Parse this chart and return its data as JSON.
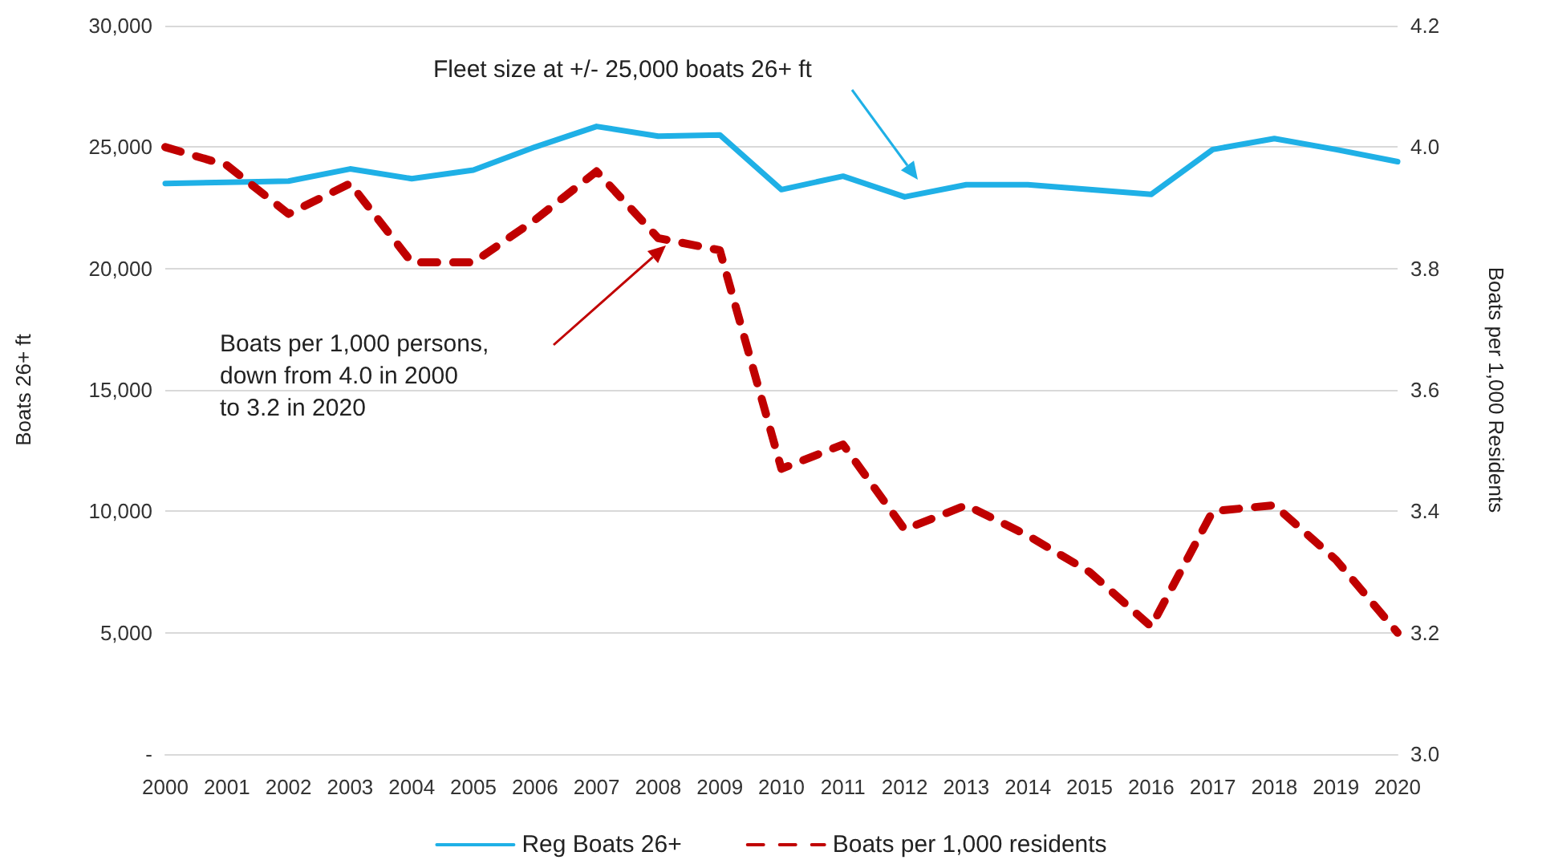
{
  "chart_data": {
    "type": "line",
    "ylabel": "Boats 26+ ft",
    "y2label": "Boats per 1,000 Residents",
    "categories": [
      "2000",
      "2001",
      "2002",
      "2003",
      "2004",
      "2005",
      "2006",
      "2007",
      "2008",
      "2009",
      "2010",
      "2011",
      "2012",
      "2013",
      "2014",
      "2015",
      "2016",
      "2017",
      "2018",
      "2019",
      "2020"
    ],
    "series": [
      {
        "name": "Reg Boats 26+",
        "color": "#1fb0e6",
        "line_style": "solid",
        "values": [
          23500,
          23550,
          23600,
          24100,
          23700,
          24050,
          25000,
          25850,
          25450,
          25500,
          23250,
          23800,
          22950,
          23450,
          23450,
          23250,
          23050,
          24900,
          25350,
          24900,
          24400
        ]
      },
      {
        "name": "Boats per 1,000 residents",
        "color": "#c00000",
        "line_style": "dashed",
        "axis": "y2",
        "values": [
          4.0,
          3.97,
          3.89,
          3.94,
          3.81,
          3.81,
          3.88,
          3.96,
          3.85,
          3.83,
          3.47,
          3.51,
          3.37,
          3.41,
          3.36,
          3.3,
          3.21,
          3.4,
          3.41,
          3.32,
          3.2
        ]
      }
    ],
    "ylim": [
      0,
      30000
    ],
    "yticks": [
      {
        "value": 0,
        "label": "-"
      },
      {
        "value": 5000,
        "label": "5,000"
      },
      {
        "value": 10000,
        "label": "10,000"
      },
      {
        "value": 15000,
        "label": "15,000"
      },
      {
        "value": 20000,
        "label": "20,000"
      },
      {
        "value": 25000,
        "label": "25,000"
      },
      {
        "value": 30000,
        "label": "30,000"
      }
    ],
    "y2lim": [
      3.0,
      4.2
    ],
    "y2ticks": [
      {
        "value": 3.0,
        "label": "3.0"
      },
      {
        "value": 3.2,
        "label": "3.2"
      },
      {
        "value": 3.4,
        "label": "3.4"
      },
      {
        "value": 3.6,
        "label": "3.6"
      },
      {
        "value": 3.8,
        "label": "3.8"
      },
      {
        "value": 4.0,
        "label": "4.0"
      },
      {
        "value": 4.2,
        "label": "4.2"
      }
    ],
    "annotations": [
      "Fleet size at +/- 25,000 boats 26+ ft",
      "Boats per 1,000 persons,\ndown from 4.0 in 2000\nto 3.2 in 2020"
    ],
    "grid": "y",
    "legend": "bottom",
    "marker": "none"
  }
}
